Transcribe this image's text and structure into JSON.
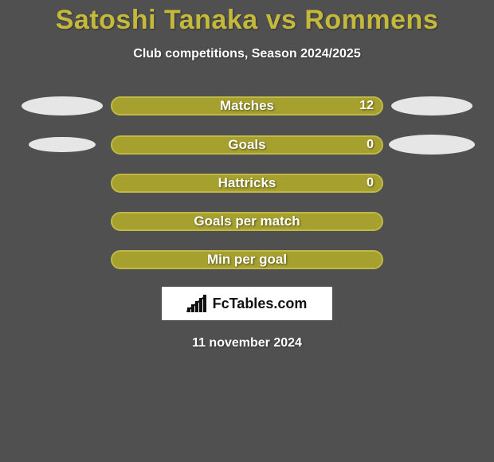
{
  "background_color": "#505050",
  "text_color": "#ffffff",
  "title": "Satoshi Tanaka vs Rommens",
  "title_color": "#c4b93b",
  "subtitle": "Club competitions, Season 2024/2025",
  "date": "11 november 2024",
  "ellipse_color": "#e6e6e6",
  "bar": {
    "track_color": "#a6a02e",
    "border_color": "#c0b847",
    "fill_color": "#a6a02e"
  },
  "rows": [
    {
      "label": "Matches",
      "value": "12",
      "has_ellipses": true,
      "fill_pct": 100,
      "ellipse_scale_left": 1.0,
      "ellipse_scale_right": 1.0
    },
    {
      "label": "Goals",
      "value": "0",
      "has_ellipses": true,
      "fill_pct": 100,
      "ellipse_scale_left": 0.82,
      "ellipse_scale_right": 1.05
    },
    {
      "label": "Hattricks",
      "value": "0",
      "has_ellipses": false,
      "fill_pct": 100
    },
    {
      "label": "Goals per match",
      "value": "",
      "has_ellipses": false,
      "fill_pct": 100
    },
    {
      "label": "Min per goal",
      "value": "",
      "has_ellipses": false,
      "fill_pct": 100
    }
  ],
  "logo": {
    "box_bg": "#ffffff",
    "text": "FcTables.com",
    "text_color": "#111111",
    "icon_color": "#111111",
    "bar_heights": [
      6,
      10,
      14,
      18,
      22
    ]
  }
}
